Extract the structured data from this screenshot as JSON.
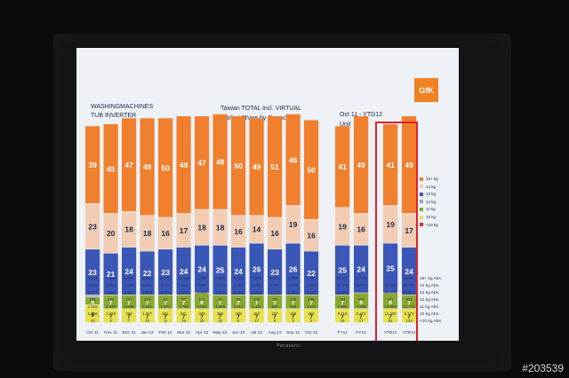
{
  "header": {
    "line1": "WASHINGMACHINES",
    "line2": "TUB INVERTER",
    "center_title": "Taiwan TOTAL incl. VIRTUAL",
    "center_subtitle": "Market Share by Capacity",
    "period": "Oct 11 - YTD12",
    "unit": "Unit",
    "logo": "GfK"
  },
  "brand_label": "Panasonic",
  "watermark": "#203539",
  "colors": {
    "15plus": "#f07f2e",
    "14": "#f2cdb3",
    "13": "#3a56b6",
    "12": "#9aa6b6",
    "11": "#8aa82e",
    "10": "#e8e04a",
    "lt10": "#e02a2a"
  },
  "chart_data": {
    "type": "bar",
    "stacked": true,
    "title": "Taiwan TOTAL incl. VIRTUAL Market Share by Capacity",
    "categories": [
      "Oct 11",
      "Nov 11",
      "Dec 11",
      "Jan 12",
      "Feb 12",
      "Mar 12",
      "Apr 12",
      "May 12",
      "Jun 12",
      "Jul 12",
      "Aug 12",
      "Sep 12",
      "Oct 12",
      "FY11",
      "FY12",
      "YTD11",
      "YTD12"
    ],
    "series": [
      {
        "name": "<10 kg",
        "values": [
          0,
          0,
          0,
          0,
          0,
          0,
          0,
          0,
          0,
          0,
          0,
          0,
          0,
          0,
          0,
          0,
          0
        ]
      },
      {
        "name": "10 kg",
        "values": [
          9,
          7,
          7,
          7,
          7,
          7,
          7,
          7,
          7,
          7,
          7,
          7,
          7,
          7,
          7,
          7,
          7
        ]
      },
      {
        "name": "11 kg",
        "values": [
          4,
          7,
          7,
          7,
          7,
          7,
          8,
          7,
          7,
          7,
          7,
          7,
          7,
          7,
          8,
          8,
          7
        ]
      },
      {
        "name": "12 kg",
        "values": [
          1,
          0,
          0,
          0,
          0,
          0,
          0,
          0,
          0,
          0,
          0,
          0,
          0,
          0,
          0,
          0,
          0
        ]
      },
      {
        "name": "13 kg",
        "values": [
          23,
          21,
          24,
          22,
          23,
          24,
          24,
          25,
          24,
          26,
          23,
          26,
          22,
          25,
          24,
          25,
          24
        ]
      },
      {
        "name": "14 kg",
        "values": [
          23,
          20,
          18,
          18,
          16,
          17,
          18,
          18,
          16,
          14,
          16,
          19,
          16,
          19,
          16,
          19,
          17
        ]
      },
      {
        "name": "15+ kg",
        "values": [
          39,
          45,
          47,
          49,
          50,
          49,
          47,
          48,
          50,
          49,
          51,
          46,
          50,
          41,
          49,
          41,
          49
        ]
      }
    ],
    "legend": [
      "15+ kg",
      "14 kg",
      "13 kg",
      "12 kg",
      "11 kg",
      "10 kg",
      "<10 kg"
    ],
    "legend_position": "right",
    "ylim": [
      0,
      100
    ],
    "table": {
      "row_labels": [
        "15+ kg Abs.",
        "14 kg Abs.",
        "13 kg Abs.",
        "12 kg Abs.",
        "11 kg Abs.",
        "10 kg Abs.",
        "<10 kg Abs."
      ],
      "rows": [
        [
          "6.234",
          "7.385",
          "8.585",
          "10.561",
          "10.097",
          "10.188",
          "8.559",
          "8.691",
          "8.755",
          "7.908",
          "5.974",
          "8.895",
          "7.997",
          "45.372",
          "67.649",
          "",
          "38.880"
        ],
        [
          "3.652",
          "3.214",
          "3.280",
          "5.811",
          "3.521",
          "4.664",
          "2.469",
          "2.152",
          "2.754",
          "2.181",
          "1.880",
          "2.473",
          "2.499",
          "27.278",
          "16.706",
          "32.522",
          "28.792"
        ],
        [
          "3.671",
          "3.468",
          "4.432",
          "6.869",
          "5.070",
          "6.567",
          "3.303",
          "3.412",
          "3.264",
          "4.223",
          "2.722",
          "3.323",
          "3.477",
          "31.944",
          "",
          "42.373",
          "42.101"
        ],
        [
          "155",
          "191",
          "117",
          "122",
          "54",
          "97",
          "114",
          "31",
          "63",
          "100",
          "93",
          "118",
          "105",
          "461",
          "905",
          "437",
          "845"
        ],
        [
          "1.016",
          "1.119",
          "1.286",
          "2.281",
          "1.571",
          "1.785",
          "1.062",
          "1.058",
          "1.012",
          "1.111",
          "808",
          "849",
          "1.332",
          "7.986",
          "7.328",
          "12.094",
          "12.773"
        ],
        [
          "1.369",
          "1.030",
          "769",
          "1.257",
          "631",
          "871",
          "379",
          "368",
          "209",
          "452",
          "237",
          "198",
          "460",
          "9.215",
          "2.473",
          "12.300",
          "5.173"
        ],
        [
          "20",
          "5",
          "7",
          "10",
          "11",
          "25",
          "18",
          "22",
          "8",
          "17",
          "6",
          "3",
          "2",
          "16",
          "17",
          "81",
          "124"
        ]
      ]
    }
  }
}
